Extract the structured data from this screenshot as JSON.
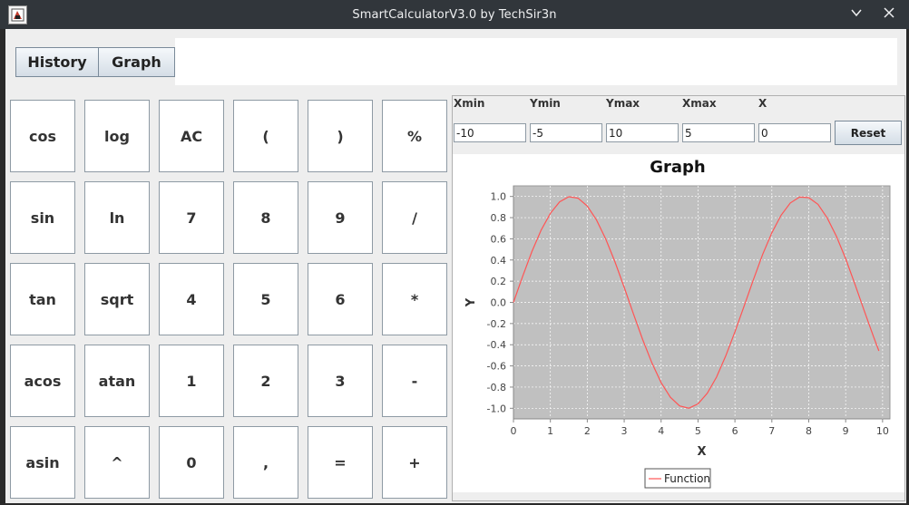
{
  "window": {
    "title": "SmartCalculatorV3.0 by TechSir3n",
    "minimize_icon": "chevron-down-icon",
    "close_icon": "close-icon"
  },
  "toolbar": {
    "history_label": "History",
    "graph_label": "Graph",
    "display_value": ""
  },
  "keypad": {
    "rows": [
      [
        "cos",
        "log",
        "AC",
        "(",
        ")",
        "%"
      ],
      [
        "sin",
        "ln",
        "7",
        "8",
        "9",
        "/"
      ],
      [
        "tan",
        "sqrt",
        "4",
        "5",
        "6",
        "*"
      ],
      [
        "acos",
        "atan",
        "1",
        "2",
        "3",
        "-"
      ],
      [
        "asin",
        "^",
        "0",
        ",",
        "=",
        "+"
      ]
    ]
  },
  "graph_controls": {
    "xmin_label": "Xmin",
    "ymin_label": "Ymin",
    "ymax_label": "Ymax",
    "xmax_label": "Xmax",
    "x_label": "X",
    "xmin_value": "-10",
    "ymin_value": "-5",
    "ymax_value": "10",
    "xmax_value": "5",
    "x_value": "0",
    "reset_label": "Reset"
  },
  "chart_data": {
    "type": "line",
    "title": "Graph",
    "xlabel": "X",
    "ylabel": "Y",
    "xlim": [
      0,
      10.2
    ],
    "ylim": [
      -1.1,
      1.1
    ],
    "xticks": [
      0,
      1,
      2,
      3,
      4,
      5,
      6,
      7,
      8,
      9,
      10
    ],
    "yticks": [
      -1.0,
      -0.8,
      -0.6,
      -0.4,
      -0.2,
      0.0,
      0.2,
      0.4,
      0.6,
      0.8,
      1.0
    ],
    "grid": true,
    "legend": "bottom-center",
    "colors": {
      "plot_background": "#c0c0c0",
      "line": "#ff5555",
      "grid": "#ffffff"
    },
    "series": [
      {
        "name": "Function",
        "x": [
          0,
          0.25,
          0.5,
          0.75,
          1,
          1.25,
          1.5,
          1.75,
          2,
          2.25,
          2.5,
          2.75,
          3,
          3.25,
          3.5,
          3.75,
          4,
          4.25,
          4.5,
          4.75,
          5,
          5.25,
          5.5,
          5.75,
          6,
          6.25,
          6.5,
          6.75,
          7,
          7.25,
          7.5,
          7.75,
          8,
          8.25,
          8.5,
          8.75,
          9,
          9.25,
          9.5,
          9.75,
          9.9
        ],
        "y": [
          0,
          0.247,
          0.479,
          0.682,
          0.841,
          0.949,
          0.997,
          0.984,
          0.909,
          0.778,
          0.598,
          0.382,
          0.141,
          -0.108,
          -0.351,
          -0.572,
          -0.757,
          -0.895,
          -0.978,
          -0.999,
          -0.959,
          -0.859,
          -0.706,
          -0.508,
          -0.279,
          -0.033,
          0.215,
          0.451,
          0.657,
          0.823,
          0.938,
          0.994,
          0.989,
          0.925,
          0.798,
          0.624,
          0.412,
          0.174,
          -0.075,
          -0.319,
          -0.458
        ]
      }
    ]
  }
}
